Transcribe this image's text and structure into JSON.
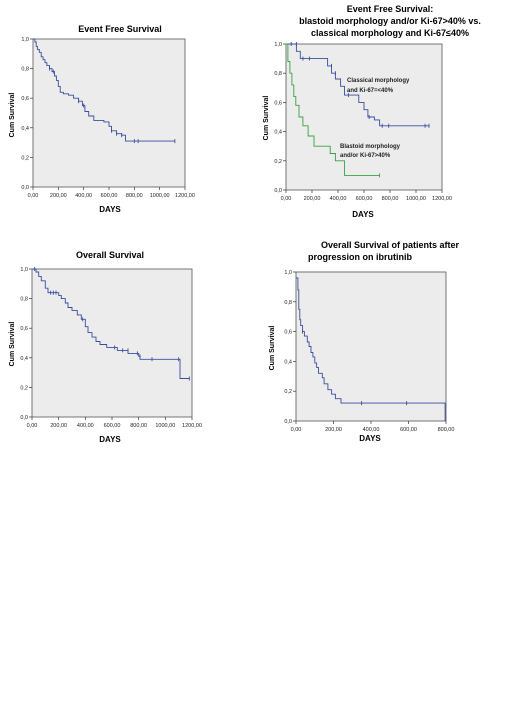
{
  "chart_data": [
    {
      "type": "line",
      "title": "Event Free Survival",
      "xlabel": "DAYS",
      "ylabel": "Cum Survival",
      "xlim": [
        0,
        1200
      ],
      "ylim": [
        0,
        1.0
      ],
      "x_ticks": [
        "0,00",
        "200,00",
        "400,00",
        "600,00",
        "800,00",
        "1000,00",
        "1200,00"
      ],
      "y_ticks": [
        "0,0",
        "0,2",
        "0,4",
        "0,6",
        "0,8",
        "1,0"
      ],
      "colors": {
        "series": "#3a4e9c",
        "plot_bg": "#ececec"
      },
      "series": [
        {
          "steps": [
            [
              0,
              1.0
            ],
            [
              15,
              0.98
            ],
            [
              25,
              0.95
            ],
            [
              35,
              0.93
            ],
            [
              50,
              0.91
            ],
            [
              65,
              0.88
            ],
            [
              80,
              0.86
            ],
            [
              95,
              0.84
            ],
            [
              110,
              0.82
            ],
            [
              130,
              0.8
            ],
            [
              150,
              0.78
            ],
            [
              170,
              0.75
            ],
            [
              185,
              0.72
            ],
            [
              200,
              0.68
            ],
            [
              215,
              0.64
            ],
            [
              240,
              0.63
            ],
            [
              280,
              0.62
            ],
            [
              320,
              0.6
            ],
            [
              360,
              0.58
            ],
            [
              390,
              0.55
            ],
            [
              410,
              0.51
            ],
            [
              440,
              0.48
            ],
            [
              480,
              0.45
            ],
            [
              560,
              0.44
            ],
            [
              600,
              0.41
            ],
            [
              620,
              0.38
            ],
            [
              660,
              0.36
            ],
            [
              700,
              0.35
            ],
            [
              730,
              0.31
            ],
            [
              1120,
              0.31
            ]
          ],
          "censored": [
            [
              130,
              0.8
            ],
            [
              160,
              0.78
            ],
            [
              360,
              0.58
            ],
            [
              400,
              0.55
            ],
            [
              620,
              0.38
            ],
            [
              660,
              0.36
            ],
            [
              700,
              0.35
            ],
            [
              800,
              0.31
            ],
            [
              830,
              0.31
            ],
            [
              1120,
              0.31
            ]
          ]
        }
      ]
    },
    {
      "type": "line",
      "title": "Event Free Survival:",
      "subtitle_lines": [
        "blastoid morphology and/or Ki-67>40% vs.",
        "classical morphology and Ki-67≤40%"
      ],
      "xlabel": "DAYS",
      "ylabel": "Cum Survival",
      "xlim": [
        0,
        1200
      ],
      "ylim": [
        0,
        1.0
      ],
      "x_ticks": [
        "0,00",
        "200,00",
        "400,00",
        "600,00",
        "800,00",
        "1000,00",
        "1200,00"
      ],
      "y_ticks": [
        "0,0",
        "0,2",
        "0,4",
        "0,6",
        "0,8",
        "1,0"
      ],
      "colors": {
        "plot_bg": "#ececec"
      },
      "series": [
        {
          "label_lines": [
            "Classical morphology",
            "and Ki-67=<40%"
          ],
          "color": "#3a4e9c",
          "steps": [
            [
              0,
              1.0
            ],
            [
              80,
              0.95
            ],
            [
              110,
              0.9
            ],
            [
              150,
              0.9
            ],
            [
              320,
              0.85
            ],
            [
              350,
              0.8
            ],
            [
              380,
              0.76
            ],
            [
              420,
              0.71
            ],
            [
              450,
              0.65
            ],
            [
              560,
              0.6
            ],
            [
              600,
              0.55
            ],
            [
              630,
              0.5
            ],
            [
              680,
              0.48
            ],
            [
              720,
              0.44
            ],
            [
              1100,
              0.44
            ]
          ],
          "censored": [
            [
              40,
              1.0
            ],
            [
              80,
              1.0
            ],
            [
              130,
              0.9
            ],
            [
              180,
              0.9
            ],
            [
              350,
              0.85
            ],
            [
              380,
              0.8
            ],
            [
              480,
              0.65
            ],
            [
              640,
              0.5
            ],
            [
              740,
              0.44
            ],
            [
              790,
              0.44
            ],
            [
              1070,
              0.44
            ],
            [
              1100,
              0.44
            ]
          ]
        },
        {
          "label_lines": [
            "Blastoid morphology",
            "and/or Ki-67>40%"
          ],
          "color": "#3aa043",
          "steps": [
            [
              0,
              1.0
            ],
            [
              15,
              0.88
            ],
            [
              30,
              0.8
            ],
            [
              45,
              0.72
            ],
            [
              60,
              0.64
            ],
            [
              75,
              0.58
            ],
            [
              100,
              0.5
            ],
            [
              130,
              0.44
            ],
            [
              170,
              0.37
            ],
            [
              215,
              0.3
            ],
            [
              340,
              0.25
            ],
            [
              380,
              0.2
            ],
            [
              450,
              0.1
            ],
            [
              720,
              0.1
            ]
          ],
          "censored": [
            [
              720,
              0.1
            ]
          ]
        }
      ]
    },
    {
      "type": "line",
      "title": "Overall Survival",
      "xlabel": "DAYS",
      "ylabel": "Cum Survival",
      "xlim": [
        0,
        1200
      ],
      "ylim": [
        0,
        1.0
      ],
      "x_ticks": [
        "0,00",
        "200,00",
        "400,00",
        "600,00",
        "800,00",
        "1000,00",
        "1200,00"
      ],
      "y_ticks": [
        "0,0",
        "0,2",
        "0,4",
        "0,6",
        "0,8",
        "1,0"
      ],
      "colors": {
        "series": "#3a4e9c",
        "plot_bg": "#ececec"
      },
      "series": [
        {
          "steps": [
            [
              0,
              1.0
            ],
            [
              30,
              0.98
            ],
            [
              50,
              0.95
            ],
            [
              70,
              0.92
            ],
            [
              100,
              0.87
            ],
            [
              120,
              0.84
            ],
            [
              200,
              0.82
            ],
            [
              220,
              0.8
            ],
            [
              250,
              0.77
            ],
            [
              270,
              0.74
            ],
            [
              300,
              0.72
            ],
            [
              340,
              0.69
            ],
            [
              370,
              0.66
            ],
            [
              400,
              0.61
            ],
            [
              420,
              0.57
            ],
            [
              450,
              0.54
            ],
            [
              480,
              0.51
            ],
            [
              510,
              0.49
            ],
            [
              560,
              0.47
            ],
            [
              620,
              0.47
            ],
            [
              640,
              0.45
            ],
            [
              720,
              0.43
            ],
            [
              800,
              0.41
            ],
            [
              810,
              0.39
            ],
            [
              1080,
              0.39
            ],
            [
              1110,
              0.26
            ],
            [
              1180,
              0.26
            ]
          ],
          "censored": [
            [
              20,
              1.0
            ],
            [
              140,
              0.84
            ],
            [
              160,
              0.84
            ],
            [
              180,
              0.84
            ],
            [
              380,
              0.66
            ],
            [
              620,
              0.47
            ],
            [
              680,
              0.45
            ],
            [
              720,
              0.45
            ],
            [
              790,
              0.43
            ],
            [
              810,
              0.41
            ],
            [
              900,
              0.39
            ],
            [
              1100,
              0.39
            ],
            [
              1180,
              0.26
            ]
          ]
        }
      ]
    },
    {
      "type": "line",
      "title": "Overall Survival of patients after",
      "subtitle_lines": [
        "progression on ibrutinib"
      ],
      "xlabel": "DAYS",
      "ylabel": "Cum Survival",
      "xlim": [
        0,
        800
      ],
      "ylim": [
        0,
        1.0
      ],
      "x_ticks": [
        "0,00",
        "200,00",
        "400,00",
        "600,00",
        "800,00"
      ],
      "y_ticks": [
        "0,0",
        "0,2",
        "0,4",
        "0,6",
        "0,8",
        "1,0"
      ],
      "colors": {
        "series": "#3a4e9c",
        "plot_bg": "#ececec"
      },
      "series": [
        {
          "steps": [
            [
              0,
              0.96
            ],
            [
              10,
              0.88
            ],
            [
              15,
              0.75
            ],
            [
              20,
              0.68
            ],
            [
              25,
              0.64
            ],
            [
              35,
              0.6
            ],
            [
              45,
              0.57
            ],
            [
              60,
              0.53
            ],
            [
              70,
              0.5
            ],
            [
              80,
              0.46
            ],
            [
              90,
              0.43
            ],
            [
              100,
              0.39
            ],
            [
              110,
              0.36
            ],
            [
              120,
              0.32
            ],
            [
              140,
              0.29
            ],
            [
              150,
              0.25
            ],
            [
              170,
              0.21
            ],
            [
              190,
              0.18
            ],
            [
              210,
              0.15
            ],
            [
              240,
              0.12
            ],
            [
              795,
              0.12
            ],
            [
              795,
              0.0
            ]
          ],
          "censored": [
            [
              35,
              0.6
            ],
            [
              350,
              0.12
            ],
            [
              590,
              0.12
            ]
          ]
        }
      ]
    }
  ]
}
